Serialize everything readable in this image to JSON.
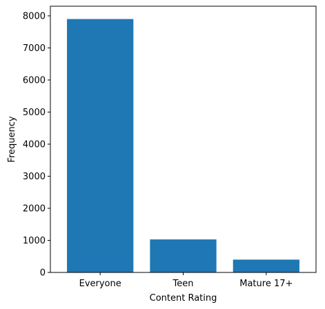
{
  "chart_data": {
    "type": "bar",
    "categories": [
      "Everyone",
      "Teen",
      "Mature 17+"
    ],
    "values": [
      7900,
      1030,
      400
    ],
    "title": "",
    "xlabel": "Content Rating",
    "ylabel": "Frequency",
    "ylim": [
      0,
      8300
    ],
    "yticks": [
      "0",
      "1000",
      "2000",
      "3000",
      "4000",
      "5000",
      "6000",
      "7000",
      "8000"
    ],
    "grid": false,
    "bar_color": "#1f77b4"
  }
}
